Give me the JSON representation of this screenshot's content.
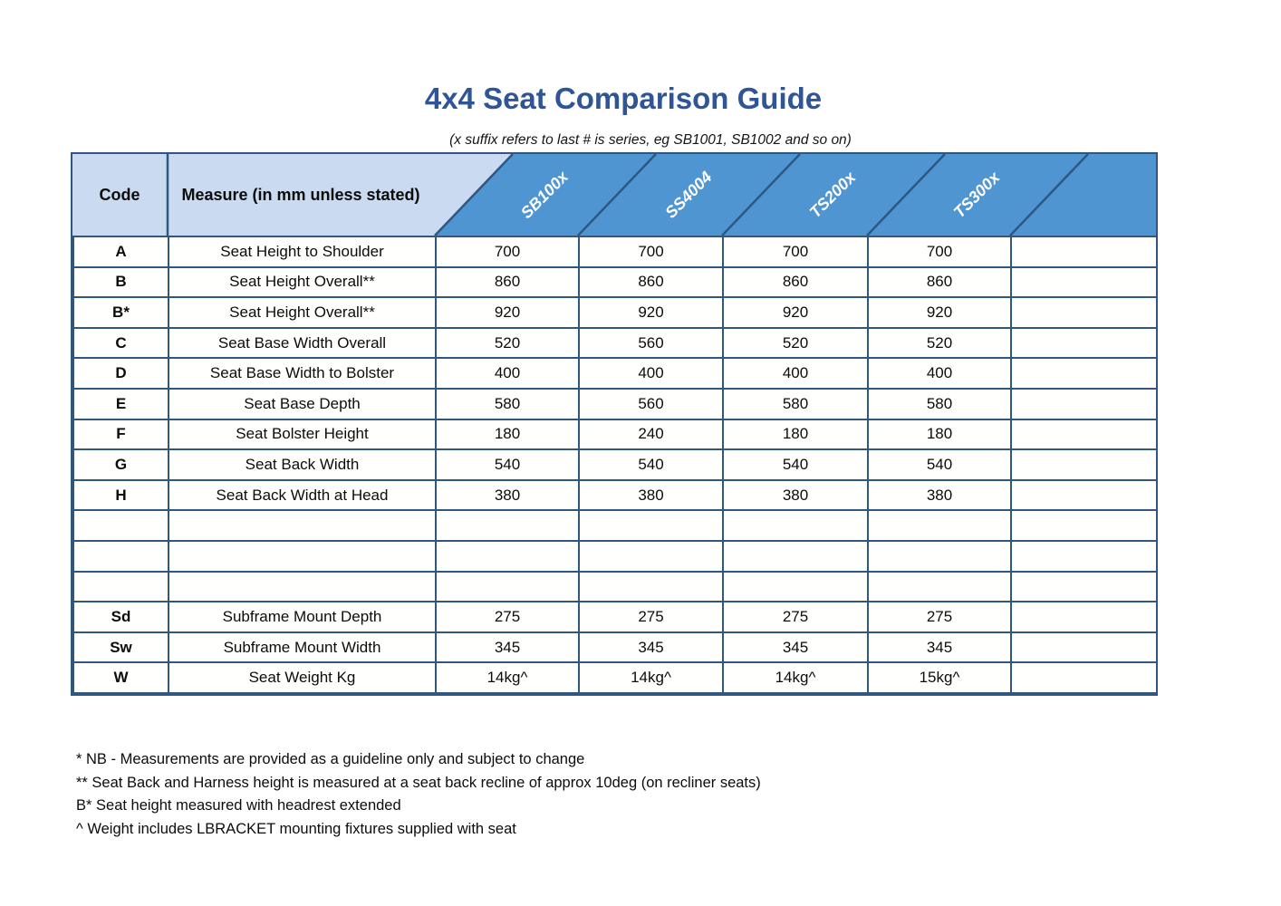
{
  "title": "4x4 Seat Comparison Guide",
  "subtitle": "(x suffix refers to last # is series, eg SB1001, SB1002 and so on)",
  "table": {
    "code_header": "Code",
    "measure_header": "Measure (in mm unless stated)",
    "products": [
      "SB100x",
      "SS4004",
      "TS200x",
      "TS300x"
    ],
    "rows": [
      {
        "code": "A",
        "measure": "Seat Height to Shoulder",
        "values": [
          "700",
          "700",
          "700",
          "700"
        ]
      },
      {
        "code": "B",
        "measure": "Seat Height Overall**",
        "values": [
          "860",
          "860",
          "860",
          "860"
        ]
      },
      {
        "code": "B*",
        "measure": "Seat Height Overall**",
        "values": [
          "920",
          "920",
          "920",
          "920"
        ]
      },
      {
        "code": "C",
        "measure": "Seat Base Width Overall",
        "values": [
          "520",
          "560",
          "520",
          "520"
        ]
      },
      {
        "code": "D",
        "measure": "Seat Base Width to Bolster",
        "values": [
          "400",
          "400",
          "400",
          "400"
        ]
      },
      {
        "code": "E",
        "measure": "Seat Base Depth",
        "values": [
          "580",
          "560",
          "580",
          "580"
        ]
      },
      {
        "code": "F",
        "measure": "Seat Bolster Height",
        "values": [
          "180",
          "240",
          "180",
          "180"
        ]
      },
      {
        "code": "G",
        "measure": "Seat Back Width",
        "values": [
          "540",
          "540",
          "540",
          "540"
        ]
      },
      {
        "code": "H",
        "measure": "Seat Back Width at Head",
        "values": [
          "380",
          "380",
          "380",
          "380"
        ]
      },
      {
        "code": "",
        "measure": "",
        "values": [
          "",
          "",
          "",
          ""
        ]
      },
      {
        "code": "",
        "measure": "",
        "values": [
          "",
          "",
          "",
          ""
        ]
      },
      {
        "code": "",
        "measure": "",
        "values": [
          "",
          "",
          "",
          ""
        ]
      },
      {
        "code": "Sd",
        "measure": "Subframe Mount Depth",
        "values": [
          "275",
          "275",
          "275",
          "275"
        ]
      },
      {
        "code": "Sw",
        "measure": "Subframe Mount Width",
        "values": [
          "345",
          "345",
          "345",
          "345"
        ]
      },
      {
        "code": "W",
        "measure": "Seat Weight Kg",
        "values": [
          "14kg^",
          "14kg^",
          "14kg^",
          "15kg^"
        ]
      }
    ]
  },
  "footnotes": [
    "* NB - Measurements are provided as a guideline only and subject to change",
    "** Seat Back and Harness height is measured at a seat back recline of approx 10deg (on recliner seats)",
    "B* Seat height measured with headrest extended",
    "^ Weight includes LBRACKET mounting fixtures supplied with seat"
  ],
  "colors": {
    "title_blue": "#2f5596",
    "table_border": "#2f5780",
    "header_light_blue": "#cadaf0",
    "header_dark_blue": "#4f95d1",
    "product_label_text": "#ffffff"
  }
}
